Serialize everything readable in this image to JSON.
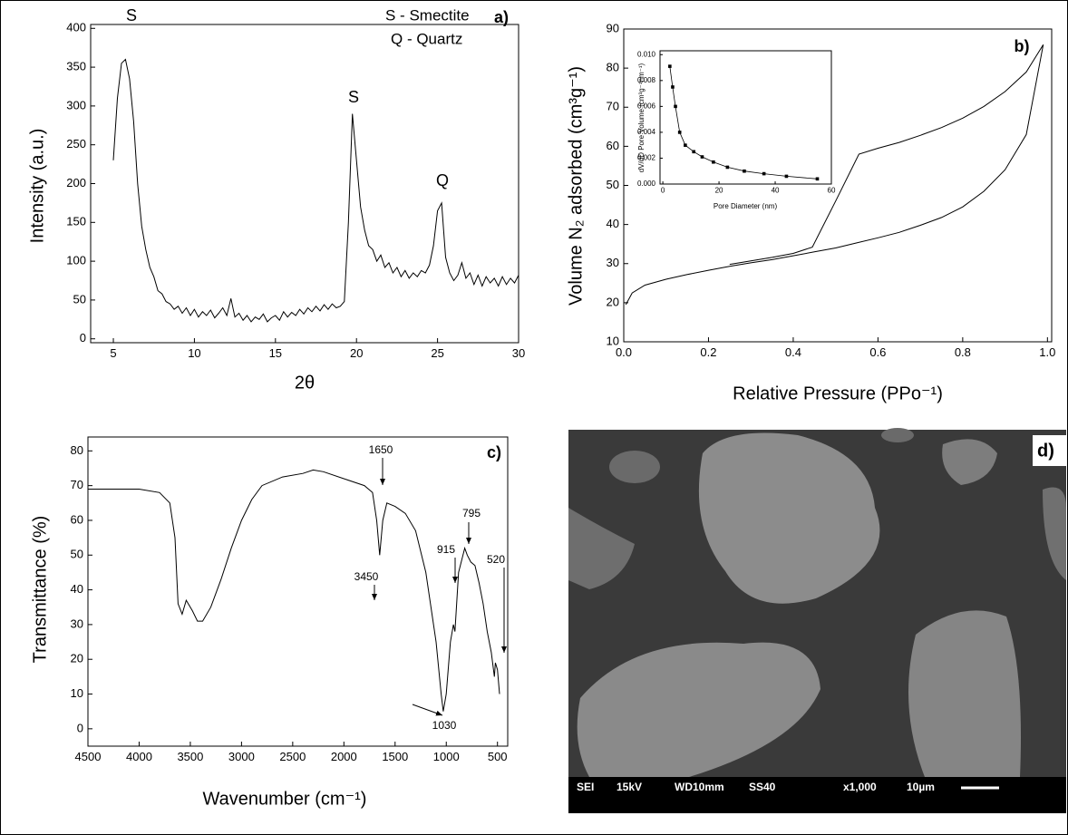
{
  "chart_data": [
    {
      "type": "line",
      "panel_label": "a)",
      "xlabel": "2θ",
      "ylabel": "Intensity (a.u.)",
      "annotations": [
        "S",
        "S",
        "Q",
        "S - Smectite",
        "Q - Quartz"
      ],
      "xlim": [
        3.6,
        30
      ],
      "ylim": [
        -5,
        405
      ],
      "xticks": [
        5,
        10,
        15,
        20,
        25,
        30
      ],
      "yticks": [
        0,
        50,
        100,
        150,
        200,
        250,
        300,
        350,
        400
      ],
      "series": [
        {
          "color": "#000000",
          "x": [
            5,
            5.25,
            5.5,
            5.75,
            6,
            6.25,
            6.5,
            6.75,
            7,
            7.25,
            7.5,
            7.75,
            8,
            8.25,
            8.5,
            8.75,
            9,
            9.25,
            9.5,
            9.75,
            10,
            10.25,
            10.5,
            10.75,
            11,
            11.25,
            11.5,
            11.75,
            12,
            12.25,
            12.5,
            12.75,
            13,
            13.25,
            13.5,
            13.75,
            14,
            14.25,
            14.5,
            14.75,
            15,
            15.25,
            15.5,
            15.75,
            16,
            16.25,
            16.5,
            16.75,
            17,
            17.25,
            17.5,
            17.75,
            18,
            18.25,
            18.5,
            18.75,
            19,
            19.25,
            19.5,
            19.75,
            20,
            20.25,
            20.5,
            20.75,
            21,
            21.25,
            21.5,
            21.75,
            22,
            22.25,
            22.5,
            22.75,
            23,
            23.25,
            23.5,
            23.75,
            24,
            24.25,
            24.5,
            24.75,
            25,
            25.25,
            25.5,
            25.75,
            26,
            26.25,
            26.5,
            26.75,
            27,
            27.25,
            27.5,
            27.75,
            28,
            28.25,
            28.5,
            28.75,
            29,
            29.25,
            29.5,
            29.75,
            30
          ],
          "values": [
            230,
            310,
            355,
            360,
            335,
            280,
            200,
            145,
            115,
            92,
            80,
            62,
            58,
            48,
            45,
            38,
            42,
            33,
            40,
            30,
            38,
            28,
            35,
            30,
            37,
            27,
            33,
            40,
            30,
            52,
            28,
            33,
            24,
            30,
            22,
            28,
            25,
            32,
            22,
            27,
            30,
            24,
            35,
            28,
            34,
            30,
            38,
            32,
            40,
            35,
            42,
            36,
            44,
            38,
            45,
            40,
            42,
            48,
            150,
            290,
            230,
            170,
            140,
            120,
            115,
            100,
            108,
            92,
            98,
            85,
            92,
            80,
            88,
            78,
            85,
            80,
            88,
            85,
            95,
            120,
            165,
            175,
            105,
            85,
            75,
            82,
            98,
            78,
            85,
            70,
            82,
            68,
            80,
            72,
            78,
            68,
            80,
            70,
            78,
            72,
            82
          ]
        }
      ]
    },
    {
      "type": "line",
      "panel_label": "b)",
      "xlabel": "Relative Pressure (PPo⁻¹)",
      "ylabel": "Volume N₂ adsorbed (cm³g⁻¹)",
      "xlim": [
        0,
        1.01
      ],
      "ylim": [
        10,
        90
      ],
      "xticks": [
        {
          "value": 0,
          "label": "0.0"
        },
        0.2,
        0.4,
        0.6,
        0.8,
        {
          "value": 1,
          "label": "1.0"
        }
      ],
      "yticks": [
        10,
        20,
        30,
        40,
        50,
        60,
        70,
        80,
        90
      ],
      "series": [
        {
          "color": "#000000",
          "x": [
            0.005,
            0.02,
            0.05,
            0.1,
            0.15,
            0.2,
            0.25,
            0.3,
            0.35,
            0.4,
            0.45,
            0.5,
            0.55,
            0.6,
            0.65,
            0.7,
            0.75,
            0.8,
            0.85,
            0.9,
            0.95,
            0.99
          ],
          "values": [
            19.5,
            22.5,
            24.5,
            26,
            27.2,
            28.3,
            29.3,
            30.2,
            31,
            32,
            33,
            34,
            35.3,
            36.6,
            38,
            39.8,
            41.8,
            44.5,
            48.5,
            54,
            63,
            86
          ]
        },
        {
          "color": "#000000",
          "x": [
            0.99,
            0.95,
            0.9,
            0.85,
            0.8,
            0.75,
            0.7,
            0.65,
            0.6,
            0.555,
            0.5,
            0.445,
            0.4,
            0.35,
            0.3,
            0.25
          ],
          "values": [
            86,
            79,
            74,
            70.2,
            67.2,
            64.8,
            62.8,
            61,
            59.5,
            58,
            46,
            34.2,
            32.6,
            31.6,
            30.7,
            29.8
          ]
        }
      ]
    },
    {
      "type": "line",
      "markers": true,
      "xlabel": "Pore Diameter (nm)",
      "ylabel": "dV/dD Pore Volume (cm³g⁻¹nm⁻¹)",
      "xlim": [
        -1,
        60
      ],
      "ylim": [
        0,
        0.0103
      ],
      "xticks": [
        0,
        20,
        40,
        60
      ],
      "yticks": [
        {
          "value": 0,
          "label": "0.000"
        },
        {
          "value": 0.002,
          "label": "0.002"
        },
        {
          "value": 0.004,
          "label": "0.004"
        },
        {
          "value": 0.006,
          "label": "0.006"
        },
        {
          "value": 0.008,
          "label": "0.008"
        },
        {
          "value": 0.01,
          "label": "0.010"
        }
      ],
      "series": [
        {
          "color": "#000000",
          "x": [
            2.5,
            3.5,
            4.5,
            6,
            8,
            11,
            14,
            18,
            23,
            29,
            36,
            44,
            55
          ],
          "values": [
            0.0091,
            0.0075,
            0.006,
            0.004,
            0.003,
            0.0025,
            0.0021,
            0.0017,
            0.0013,
            0.001,
            0.0008,
            0.0006,
            0.0004
          ]
        }
      ]
    },
    {
      "type": "line",
      "panel_label": "c)",
      "xlabel": "Wavenumber (cm⁻¹)",
      "ylabel": "Transmittance (%)",
      "annotations": [
        "3450",
        "1650",
        "915",
        "795",
        "520",
        "1030"
      ],
      "xlim": [
        4500,
        400
      ],
      "ylim": [
        -5,
        84
      ],
      "xticks": [
        4500,
        4000,
        3500,
        3000,
        2500,
        2000,
        1500,
        1000,
        500
      ],
      "yticks": [
        0,
        10,
        20,
        30,
        40,
        50,
        60,
        70,
        80
      ],
      "series": [
        {
          "color": "#000000",
          "x": [
            4500,
            4000,
            3800,
            3700,
            3650,
            3620,
            3580,
            3540,
            3480,
            3430,
            3380,
            3300,
            3200,
            3100,
            3000,
            2900,
            2800,
            2600,
            2400,
            2300,
            2200,
            2000,
            1800,
            1720,
            1680,
            1650,
            1620,
            1580,
            1500,
            1400,
            1300,
            1200,
            1100,
            1050,
            1030,
            1000,
            960,
            930,
            915,
            880,
            820,
            795,
            760,
            720,
            680,
            640,
            600,
            560,
            530,
            520,
            500,
            480
          ],
          "values": [
            69,
            69,
            68,
            65,
            55,
            36,
            33,
            37,
            34,
            31,
            31,
            35,
            43,
            52,
            60,
            66,
            70,
            72.5,
            73.5,
            74.5,
            74,
            72,
            70,
            68,
            60,
            50,
            60,
            65,
            64,
            62,
            57,
            45,
            25,
            10,
            5,
            10,
            25,
            30,
            28,
            45,
            52,
            50,
            48,
            47,
            42,
            36,
            28,
            22,
            15,
            19,
            17,
            10
          ]
        }
      ]
    }
  ],
  "image": {
    "label": "d)",
    "info": [
      "SEI",
      "15kV",
      "WD10mm",
      "SS40",
      "x1,000",
      "10µm"
    ]
  }
}
